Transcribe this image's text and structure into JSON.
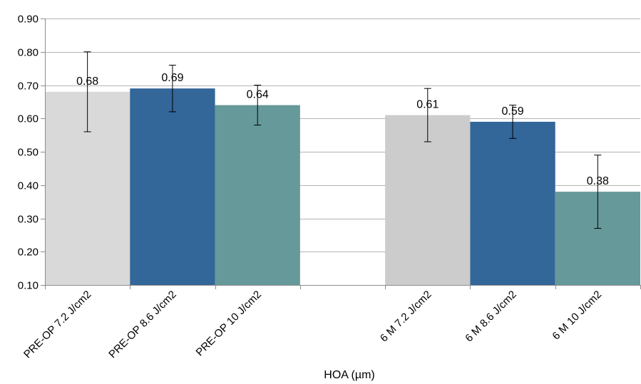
{
  "chart_data": {
    "type": "bar",
    "xlabel": "HOA (µm)",
    "ylabel": "",
    "ylim": [
      0.1,
      0.9
    ],
    "yticks": [
      "0.10",
      "0.20",
      "0.30",
      "0.40",
      "0.50",
      "0.60",
      "0.70",
      "0.80",
      "0.90"
    ],
    "grid": true,
    "categories": [
      "PRE-OP 7.2 J/cm2",
      "PRE-OP 8.6 J/cm2",
      "PRE-OP 10 J/cm2",
      "",
      "6 M 7.2 J/cm2",
      "6 M 8.6 J/cm2",
      "6 M 10 J/cm2"
    ],
    "bars": [
      {
        "category": "PRE-OP 7.2 J/cm2",
        "value": 0.68,
        "label": "0.68",
        "err_low": 0.56,
        "err_high": 0.8,
        "color": "#d9d9d9"
      },
      {
        "category": "PRE-OP 8.6 J/cm2",
        "value": 0.69,
        "label": "0.69",
        "err_low": 0.62,
        "err_high": 0.76,
        "color": "#336699"
      },
      {
        "category": "PRE-OP 10 J/cm2",
        "value": 0.64,
        "label": "0.64",
        "err_low": 0.58,
        "err_high": 0.7,
        "color": "#669999"
      },
      {
        "category": "6 M 7.2 J/cm2",
        "value": 0.61,
        "label": "0.61",
        "err_low": 0.53,
        "err_high": 0.69,
        "color": "#cccccc"
      },
      {
        "category": "6 M 8.6 J/cm2",
        "value": 0.59,
        "label": "0.59",
        "err_low": 0.54,
        "err_high": 0.64,
        "color": "#336699"
      },
      {
        "category": "6 M 10 J/cm2",
        "value": 0.38,
        "label": "0.38",
        "err_low": 0.27,
        "err_high": 0.49,
        "color": "#669999"
      }
    ]
  }
}
